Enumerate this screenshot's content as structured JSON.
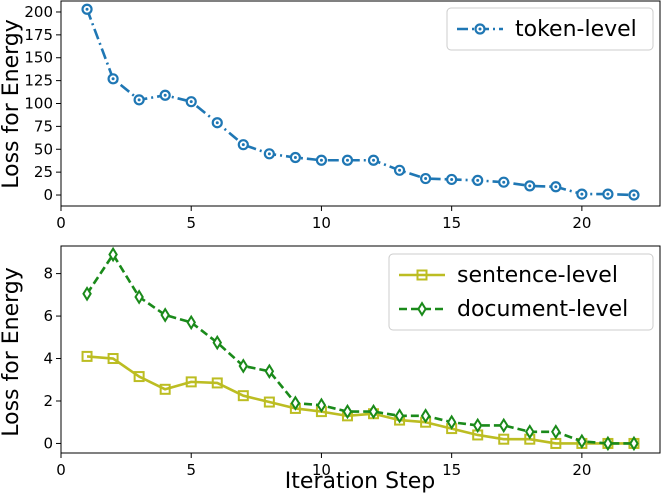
{
  "chart_data": [
    {
      "type": "line",
      "title": "",
      "xlabel": "",
      "ylabel": "Loss for Energy",
      "xlim": [
        0,
        23
      ],
      "ylim": [
        -12,
        212
      ],
      "xticks": [
        0,
        5,
        10,
        15,
        20
      ],
      "yticks": [
        0,
        25,
        50,
        75,
        100,
        125,
        150,
        175,
        200
      ],
      "grid": false,
      "legend_position": "top-right",
      "series": [
        {
          "name": "token-level",
          "color": "#1f77b4",
          "line_style": "dash-dot",
          "marker": "circle",
          "x": [
            1,
            2,
            3,
            4,
            5,
            6,
            7,
            8,
            9,
            10,
            11,
            12,
            13,
            14,
            15,
            16,
            17,
            18,
            19,
            20,
            21,
            22
          ],
          "values": [
            203,
            127,
            104,
            109,
            102,
            79,
            55,
            45,
            41,
            38,
            38,
            38,
            27,
            18,
            17,
            16,
            14,
            10,
            9,
            1,
            1,
            0
          ]
        }
      ]
    },
    {
      "type": "line",
      "title": "",
      "xlabel": "Iteration Step",
      "ylabel": "Loss for Energy",
      "xlim": [
        0,
        23
      ],
      "ylim": [
        -0.45,
        9.3
      ],
      "xticks": [
        0,
        5,
        10,
        15,
        20
      ],
      "yticks": [
        0,
        2,
        4,
        6,
        8
      ],
      "grid": false,
      "legend_position": "top-right",
      "series": [
        {
          "name": "sentence-level",
          "color": "#bcbd22",
          "line_style": "solid",
          "marker": "square",
          "x": [
            1,
            2,
            3,
            4,
            5,
            6,
            7,
            8,
            9,
            10,
            11,
            12,
            13,
            14,
            15,
            16,
            17,
            18,
            19,
            20,
            21,
            22
          ],
          "values": [
            4.1,
            4.0,
            3.15,
            2.55,
            2.9,
            2.85,
            2.25,
            1.95,
            1.65,
            1.5,
            1.3,
            1.4,
            1.1,
            1.0,
            0.7,
            0.4,
            0.2,
            0.2,
            0.0,
            0.0,
            0.0,
            0.0
          ]
        },
        {
          "name": "document-level",
          "color": "#1a8a1a",
          "line_style": "dashed",
          "marker": "diamond",
          "x": [
            1,
            2,
            3,
            4,
            5,
            6,
            7,
            8,
            9,
            10,
            11,
            12,
            13,
            14,
            15,
            16,
            17,
            18,
            19,
            20,
            21,
            22
          ],
          "values": [
            7.05,
            8.9,
            6.9,
            6.05,
            5.7,
            4.75,
            3.65,
            3.4,
            1.9,
            1.8,
            1.5,
            1.5,
            1.3,
            1.3,
            1.0,
            0.85,
            0.85,
            0.55,
            0.55,
            0.1,
            0.0,
            0.0
          ]
        }
      ]
    }
  ]
}
